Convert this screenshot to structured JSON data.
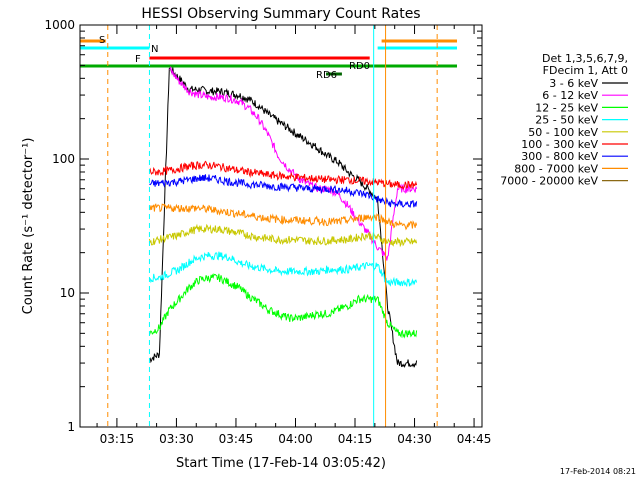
{
  "chart_data": {
    "type": "line",
    "title": "HESSI Observing Summary Count Rates",
    "xlabel": "Start Time (17-Feb-14 03:05:42)",
    "ylabel": "Count Rate (s⁻¹ detector⁻¹)",
    "yscale": "log",
    "ylim": [
      1,
      1000
    ],
    "xlim": [
      "03:05:42",
      "04:47:00"
    ],
    "x_ticks": [
      "03:15",
      "03:30",
      "03:45",
      "04:00",
      "04:15",
      "04:30",
      "04:45"
    ],
    "y_ticks": [
      "1",
      "10",
      "100",
      "1000"
    ],
    "x_minutes": [
      17.5,
      20,
      22.5,
      25,
      27.5,
      30,
      32.5,
      35,
      37.5,
      40,
      42.5,
      45,
      47.5,
      50,
      52.5,
      55,
      57.5,
      60,
      62.5,
      65,
      67.5,
      70,
      72.5,
      75,
      77.5,
      80,
      82.5,
      85
    ],
    "series": [
      {
        "name": "3 - 6 keV",
        "color": "#000000",
        "start": 20,
        "end": 82,
        "values": [
          3.2,
          3.5,
          480,
          400,
          330,
          330,
          320,
          320,
          310,
          300,
          280,
          250,
          215,
          190,
          170,
          150,
          135,
          120,
          105,
          95,
          80,
          70,
          60,
          50,
          8,
          3,
          3,
          3
        ]
      },
      {
        "name": "6 - 12 keV",
        "color": "#ff00ff",
        "start": 24,
        "end": 82,
        "values": [
          null,
          null,
          470,
          380,
          320,
          300,
          290,
          290,
          285,
          270,
          240,
          200,
          150,
          105,
          85,
          72,
          65,
          60,
          60,
          55,
          45,
          35,
          28,
          22,
          18,
          60,
          60,
          60
        ]
      },
      {
        "name": "12 - 25 keV",
        "color": "#00ff00",
        "start": 20,
        "end": 82,
        "values": [
          5,
          5.5,
          7.5,
          9,
          11,
          12.5,
          13,
          13,
          12,
          11,
          9.5,
          8.5,
          7.5,
          7,
          6.5,
          6.5,
          6.7,
          7,
          7,
          7.5,
          8,
          9,
          9,
          9,
          6,
          5,
          5,
          5
        ]
      },
      {
        "name": "25 - 50 keV",
        "color": "#00ffff",
        "start": 20,
        "end": 82,
        "values": [
          13,
          13,
          14,
          15,
          17,
          18.5,
          19,
          19,
          18.5,
          17,
          16,
          15.5,
          15,
          14.5,
          14.5,
          14.5,
          14.5,
          14.5,
          15,
          15,
          15,
          15.5,
          16,
          16,
          12,
          12,
          12,
          12
        ]
      },
      {
        "name": "50 - 100 keV",
        "color": "#c8c800",
        "start": 20,
        "end": 82,
        "values": [
          24,
          25,
          26,
          27,
          29,
          30,
          30,
          30,
          29,
          28,
          27,
          26,
          25.5,
          25,
          25,
          25,
          24.5,
          24.5,
          24.5,
          25,
          25,
          26,
          27,
          26,
          24,
          24,
          24,
          24
        ]
      },
      {
        "name": "100 - 300 keV",
        "color": "#ff0000",
        "start": 20,
        "end": 82,
        "values": [
          80,
          80,
          82,
          85,
          88,
          90,
          90,
          88,
          85,
          82,
          80,
          78,
          76,
          75,
          74,
          73,
          72,
          71,
          70,
          70,
          70,
          69,
          68,
          67,
          65,
          64,
          64,
          64
        ]
      },
      {
        "name": "300 - 800 keV",
        "color": "#0000ff",
        "start": 20,
        "end": 82,
        "values": [
          65,
          66,
          67,
          68,
          70,
          72,
          72,
          70,
          68,
          66,
          65,
          64,
          63,
          62,
          62,
          61,
          60,
          60,
          60,
          59,
          58,
          56,
          54,
          50,
          47,
          46,
          46,
          46
        ]
      },
      {
        "name": "800 - 7000 keV",
        "color": "#ff8c00",
        "start": 20,
        "end": 82,
        "values": [
          43,
          43,
          43,
          43,
          43,
          43,
          42,
          41,
          40,
          39,
          38,
          37,
          36,
          35.5,
          35,
          35,
          34.5,
          34.5,
          34,
          34,
          35,
          36,
          37,
          37,
          34,
          32,
          32,
          32
        ]
      },
      {
        "name": "7000 - 20000 keV",
        "color": "#8b6914",
        "start": 20,
        "end": 82,
        "values": [
          null,
          null,
          null,
          null,
          null,
          null,
          null,
          null,
          null,
          null,
          null,
          null,
          null,
          null,
          null,
          null,
          null,
          null,
          null,
          null,
          null,
          null,
          null,
          null,
          null,
          null,
          null,
          null
        ]
      }
    ],
    "legend": {
      "header": [
        "Det 1,3,5,6,7,9,",
        "FDecim 1, Att 0"
      ],
      "placement": "right"
    },
    "flags": [
      {
        "label": "S",
        "color": "#ff8c00",
        "segments": [
          [
            0,
            6.5
          ],
          [
            76,
            95
          ]
        ]
      },
      {
        "label": "N",
        "color": "#00ffff",
        "segments": [
          [
            0,
            17.5
          ],
          [
            75,
            95
          ]
        ]
      },
      {
        "label": "F",
        "color": "#ff0000",
        "segments": [
          [
            17.5,
            73
          ]
        ]
      },
      {
        "label": "RD0",
        "color": "#00aa00",
        "segments": [
          [
            0,
            95
          ]
        ]
      },
      {
        "label": "RD6",
        "color": "#006400",
        "segments": [
          [
            62,
            66
          ]
        ]
      }
    ],
    "vertical_markers": [
      {
        "x": 7,
        "color": "#ff8c00",
        "dashed": true
      },
      {
        "x": 17.5,
        "color": "#00ffff",
        "dashed": true
      },
      {
        "x": 74,
        "color": "#00ffff",
        "dashed": false
      },
      {
        "x": 77,
        "color": "#ff8c00",
        "dashed": false
      },
      {
        "x": 90,
        "color": "#ff8c00",
        "dashed": true
      }
    ],
    "timestamp": "17-Feb-2014 08:21"
  }
}
